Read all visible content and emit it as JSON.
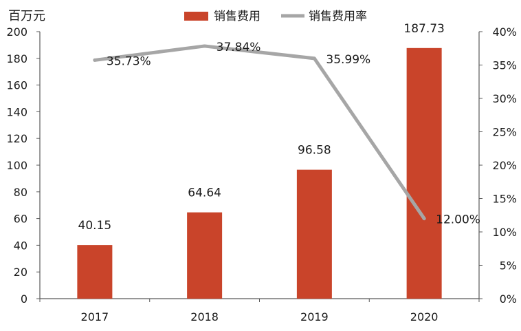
{
  "chart_data": {
    "type": "bar",
    "categories": [
      "2017",
      "2018",
      "2019",
      "2020"
    ],
    "series": [
      {
        "name": "销售费用",
        "type": "bar",
        "axis": "left",
        "values": [
          40.15,
          64.64,
          96.58,
          187.73
        ],
        "labels": [
          "40.15",
          "64.64",
          "96.58",
          "187.73"
        ],
        "color": "#C9442A"
      },
      {
        "name": "销售费用率",
        "type": "line",
        "axis": "right",
        "values": [
          35.73,
          37.84,
          35.99,
          12.0
        ],
        "labels": [
          "35.73%",
          "37.84%",
          "35.99%",
          "12.00%"
        ],
        "color": "#A6A6A6"
      }
    ],
    "left_axis": {
      "unit_label": "百万元",
      "ylim": [
        0,
        200
      ],
      "ticks": [
        "0",
        "20",
        "40",
        "60",
        "80",
        "100",
        "120",
        "140",
        "160",
        "180",
        "200"
      ]
    },
    "right_axis": {
      "ylim": [
        0,
        40
      ],
      "ticks": [
        "0%",
        "5%",
        "10%",
        "15%",
        "20%",
        "25%",
        "30%",
        "35%",
        "40%"
      ]
    },
    "legend_position": "top",
    "grid": false
  }
}
